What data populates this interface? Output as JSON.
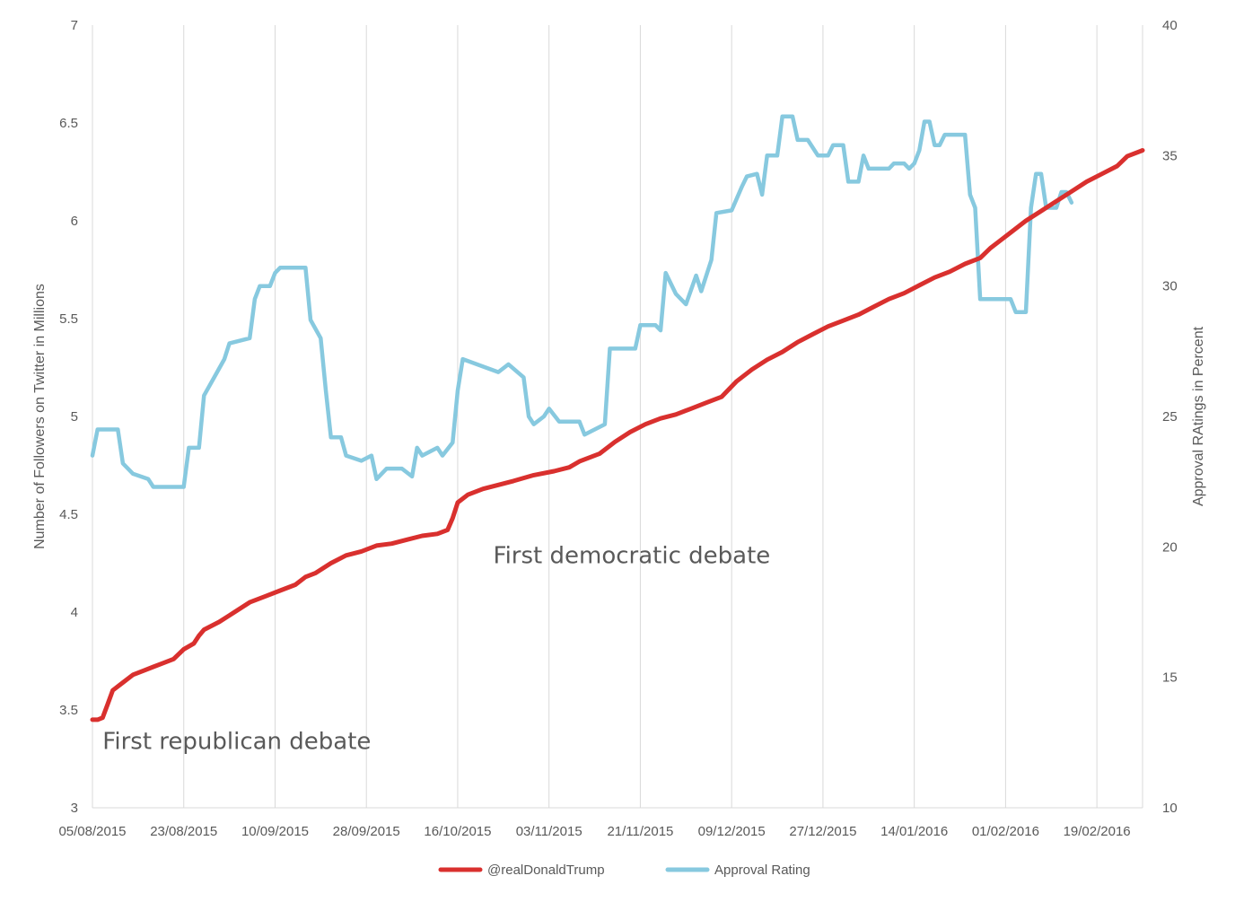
{
  "chart_data": {
    "type": "line",
    "title": "",
    "xlabel": "",
    "ylabel_left": "Number of Followers on Twitter in Millions",
    "ylabel_right": "Approval RAtings in Percent",
    "ylim_left": [
      3,
      7
    ],
    "ylim_right": [
      10,
      40
    ],
    "yticks_left": [
      "3",
      "3.5",
      "4",
      "4.5",
      "5",
      "5.5",
      "6",
      "6.5",
      "7"
    ],
    "yticks_right": [
      "10",
      "15",
      "20",
      "25",
      "30",
      "35",
      "40"
    ],
    "xlim": [
      "2015-08-05",
      "2016-02-28"
    ],
    "xtick_labels": [
      "05/08/2015",
      "23/08/2015",
      "10/09/2015",
      "28/09/2015",
      "16/10/2015",
      "03/11/2015",
      "21/11/2015",
      "09/12/2015",
      "27/12/2015",
      "14/01/2016",
      "01/02/2016",
      "19/02/2016"
    ],
    "grid": "vertical",
    "legend_position": "bottom-center",
    "annotations": [
      {
        "text": "First republican debate",
        "x": "2015-08-07",
        "y": 3.3
      },
      {
        "text": "First democratic debate",
        "x": "2015-10-23",
        "y": 4.25
      }
    ],
    "series": [
      {
        "name": "@realDonaldTrump",
        "axis": "left",
        "color": "#d9302e",
        "points": [
          [
            "2015-08-05",
            3.45
          ],
          [
            "2015-08-06",
            3.45
          ],
          [
            "2015-08-07",
            3.46
          ],
          [
            "2015-08-08",
            3.53
          ],
          [
            "2015-08-09",
            3.6
          ],
          [
            "2015-08-11",
            3.64
          ],
          [
            "2015-08-13",
            3.68
          ],
          [
            "2015-08-15",
            3.7
          ],
          [
            "2015-08-17",
            3.72
          ],
          [
            "2015-08-19",
            3.74
          ],
          [
            "2015-08-21",
            3.76
          ],
          [
            "2015-08-23",
            3.81
          ],
          [
            "2015-08-25",
            3.84
          ],
          [
            "2015-08-26",
            3.88
          ],
          [
            "2015-08-27",
            3.91
          ],
          [
            "2015-08-30",
            3.95
          ],
          [
            "2015-09-02",
            4.0
          ],
          [
            "2015-09-05",
            4.05
          ],
          [
            "2015-09-08",
            4.08
          ],
          [
            "2015-09-11",
            4.11
          ],
          [
            "2015-09-14",
            4.14
          ],
          [
            "2015-09-16",
            4.18
          ],
          [
            "2015-09-18",
            4.2
          ],
          [
            "2015-09-21",
            4.25
          ],
          [
            "2015-09-24",
            4.29
          ],
          [
            "2015-09-27",
            4.31
          ],
          [
            "2015-09-30",
            4.34
          ],
          [
            "2015-10-03",
            4.35
          ],
          [
            "2015-10-06",
            4.37
          ],
          [
            "2015-10-09",
            4.39
          ],
          [
            "2015-10-12",
            4.4
          ],
          [
            "2015-10-14",
            4.42
          ],
          [
            "2015-10-15",
            4.48
          ],
          [
            "2015-10-16",
            4.56
          ],
          [
            "2015-10-18",
            4.6
          ],
          [
            "2015-10-21",
            4.63
          ],
          [
            "2015-10-24",
            4.65
          ],
          [
            "2015-10-27",
            4.67
          ],
          [
            "2015-10-31",
            4.7
          ],
          [
            "2015-11-04",
            4.72
          ],
          [
            "2015-11-07",
            4.74
          ],
          [
            "2015-11-09",
            4.77
          ],
          [
            "2015-11-13",
            4.81
          ],
          [
            "2015-11-16",
            4.87
          ],
          [
            "2015-11-19",
            4.92
          ],
          [
            "2015-11-22",
            4.96
          ],
          [
            "2015-11-25",
            4.99
          ],
          [
            "2015-11-28",
            5.01
          ],
          [
            "2015-12-01",
            5.04
          ],
          [
            "2015-12-04",
            5.07
          ],
          [
            "2015-12-07",
            5.1
          ],
          [
            "2015-12-10",
            5.18
          ],
          [
            "2015-12-13",
            5.24
          ],
          [
            "2015-12-16",
            5.29
          ],
          [
            "2015-12-19",
            5.33
          ],
          [
            "2015-12-22",
            5.38
          ],
          [
            "2015-12-25",
            5.42
          ],
          [
            "2015-12-28",
            5.46
          ],
          [
            "2015-12-31",
            5.49
          ],
          [
            "2016-01-03",
            5.52
          ],
          [
            "2016-01-06",
            5.56
          ],
          [
            "2016-01-09",
            5.6
          ],
          [
            "2016-01-12",
            5.63
          ],
          [
            "2016-01-15",
            5.67
          ],
          [
            "2016-01-18",
            5.71
          ],
          [
            "2016-01-21",
            5.74
          ],
          [
            "2016-01-24",
            5.78
          ],
          [
            "2016-01-27",
            5.81
          ],
          [
            "2016-01-29",
            5.86
          ],
          [
            "2016-01-31",
            5.9
          ],
          [
            "2016-02-02",
            5.94
          ],
          [
            "2016-02-05",
            6.0
          ],
          [
            "2016-02-08",
            6.05
          ],
          [
            "2016-02-11",
            6.1
          ],
          [
            "2016-02-14",
            6.15
          ],
          [
            "2016-02-17",
            6.2
          ],
          [
            "2016-02-20",
            6.24
          ],
          [
            "2016-02-23",
            6.28
          ],
          [
            "2016-02-25",
            6.33
          ],
          [
            "2016-02-28",
            6.36
          ]
        ]
      },
      {
        "name": "Approval Rating",
        "axis": "right",
        "color": "#87c9df",
        "points": [
          [
            "2015-08-05",
            23.5
          ],
          [
            "2015-08-06",
            24.5
          ],
          [
            "2015-08-10",
            24.5
          ],
          [
            "2015-08-11",
            23.2
          ],
          [
            "2015-08-13",
            22.8
          ],
          [
            "2015-08-16",
            22.6
          ],
          [
            "2015-08-17",
            22.3
          ],
          [
            "2015-08-23",
            22.3
          ],
          [
            "2015-08-24",
            23.8
          ],
          [
            "2015-08-26",
            23.8
          ],
          [
            "2015-08-27",
            25.8
          ],
          [
            "2015-08-29",
            26.5
          ],
          [
            "2015-08-31",
            27.2
          ],
          [
            "2015-09-01",
            27.8
          ],
          [
            "2015-09-05",
            28.0
          ],
          [
            "2015-09-06",
            29.5
          ],
          [
            "2015-09-07",
            30.0
          ],
          [
            "2015-09-09",
            30.0
          ],
          [
            "2015-09-10",
            30.5
          ],
          [
            "2015-09-11",
            30.7
          ],
          [
            "2015-09-13",
            30.7
          ],
          [
            "2015-09-16",
            30.7
          ],
          [
            "2015-09-17",
            28.7
          ],
          [
            "2015-09-19",
            28.0
          ],
          [
            "2015-09-20",
            26.0
          ],
          [
            "2015-09-21",
            24.2
          ],
          [
            "2015-09-23",
            24.2
          ],
          [
            "2015-09-24",
            23.5
          ],
          [
            "2015-09-27",
            23.3
          ],
          [
            "2015-09-29",
            23.5
          ],
          [
            "2015-09-30",
            22.6
          ],
          [
            "2015-10-02",
            23.0
          ],
          [
            "2015-10-05",
            23.0
          ],
          [
            "2015-10-07",
            22.7
          ],
          [
            "2015-10-08",
            23.8
          ],
          [
            "2015-10-09",
            23.5
          ],
          [
            "2015-10-12",
            23.8
          ],
          [
            "2015-10-13",
            23.5
          ],
          [
            "2015-10-15",
            24.0
          ],
          [
            "2015-10-16",
            26.0
          ],
          [
            "2015-10-17",
            27.2
          ],
          [
            "2015-10-24",
            26.7
          ],
          [
            "2015-10-26",
            27.0
          ],
          [
            "2015-10-29",
            26.5
          ],
          [
            "2015-10-30",
            25.0
          ],
          [
            "2015-10-31",
            24.7
          ],
          [
            "2015-11-02",
            25.0
          ],
          [
            "2015-11-03",
            25.3
          ],
          [
            "2015-11-05",
            24.8
          ],
          [
            "2015-11-09",
            24.8
          ],
          [
            "2015-11-10",
            24.3
          ],
          [
            "2015-11-14",
            24.7
          ],
          [
            "2015-11-15",
            27.6
          ],
          [
            "2015-11-20",
            27.6
          ],
          [
            "2015-11-21",
            28.5
          ],
          [
            "2015-11-24",
            28.5
          ],
          [
            "2015-11-25",
            28.3
          ],
          [
            "2015-11-26",
            30.5
          ],
          [
            "2015-11-28",
            29.7
          ],
          [
            "2015-11-30",
            29.3
          ],
          [
            "2015-12-02",
            30.4
          ],
          [
            "2015-12-03",
            29.8
          ],
          [
            "2015-12-05",
            31.0
          ],
          [
            "2015-12-06",
            32.8
          ],
          [
            "2015-12-09",
            32.9
          ],
          [
            "2015-12-11",
            33.8
          ],
          [
            "2015-12-12",
            34.2
          ],
          [
            "2015-12-14",
            34.3
          ],
          [
            "2015-12-15",
            33.5
          ],
          [
            "2015-12-16",
            35.0
          ],
          [
            "2015-12-18",
            35.0
          ],
          [
            "2015-12-19",
            36.5
          ],
          [
            "2015-12-21",
            36.5
          ],
          [
            "2015-12-22",
            35.6
          ],
          [
            "2015-12-24",
            35.6
          ],
          [
            "2015-12-26",
            35.0
          ],
          [
            "2015-12-28",
            35.0
          ],
          [
            "2015-12-29",
            35.4
          ],
          [
            "2015-12-31",
            35.4
          ],
          [
            "2016-01-01",
            34.0
          ],
          [
            "2016-01-03",
            34.0
          ],
          [
            "2016-01-04",
            35.0
          ],
          [
            "2016-01-05",
            34.5
          ],
          [
            "2016-01-09",
            34.5
          ],
          [
            "2016-01-10",
            34.7
          ],
          [
            "2016-01-12",
            34.7
          ],
          [
            "2016-01-13",
            34.5
          ],
          [
            "2016-01-14",
            34.7
          ],
          [
            "2016-01-15",
            35.2
          ],
          [
            "2016-01-16",
            36.3
          ],
          [
            "2016-01-17",
            36.3
          ],
          [
            "2016-01-18",
            35.4
          ],
          [
            "2016-01-19",
            35.4
          ],
          [
            "2016-01-20",
            35.8
          ],
          [
            "2016-01-24",
            35.8
          ],
          [
            "2016-01-25",
            33.5
          ],
          [
            "2016-01-26",
            33.0
          ],
          [
            "2016-01-27",
            29.5
          ],
          [
            "2016-02-02",
            29.5
          ],
          [
            "2016-02-03",
            29.0
          ],
          [
            "2016-02-05",
            29.0
          ],
          [
            "2016-02-06",
            33.0
          ],
          [
            "2016-02-07",
            34.3
          ],
          [
            "2016-02-08",
            34.3
          ],
          [
            "2016-02-09",
            33.0
          ],
          [
            "2016-02-11",
            33.0
          ],
          [
            "2016-02-12",
            33.6
          ],
          [
            "2016-02-13",
            33.6
          ],
          [
            "2016-02-14",
            33.2
          ]
        ]
      }
    ]
  }
}
